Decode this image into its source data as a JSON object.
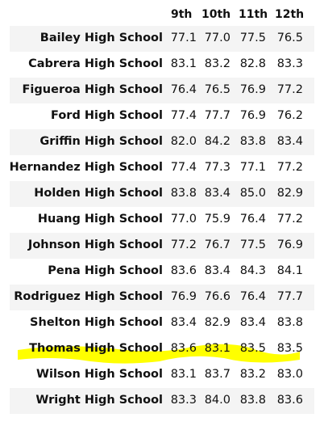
{
  "columns": [
    "9th",
    "10th",
    "11th",
    "12th"
  ],
  "rows": [
    {
      "name": "Bailey High School",
      "values": [
        "77.1",
        "77.0",
        "77.5",
        "76.5"
      ]
    },
    {
      "name": "Cabrera High School",
      "values": [
        "83.1",
        "83.2",
        "82.8",
        "83.3"
      ]
    },
    {
      "name": "Figueroa High School",
      "values": [
        "76.4",
        "76.5",
        "76.9",
        "77.2"
      ]
    },
    {
      "name": "Ford High School",
      "values": [
        "77.4",
        "77.7",
        "76.9",
        "76.2"
      ]
    },
    {
      "name": "Griffin High School",
      "values": [
        "82.0",
        "84.2",
        "83.8",
        "83.4"
      ]
    },
    {
      "name": "Hernandez High School",
      "values": [
        "77.4",
        "77.3",
        "77.1",
        "77.2"
      ]
    },
    {
      "name": "Holden High School",
      "values": [
        "83.8",
        "83.4",
        "85.0",
        "82.9"
      ]
    },
    {
      "name": "Huang High School",
      "values": [
        "77.0",
        "75.9",
        "76.4",
        "77.2"
      ]
    },
    {
      "name": "Johnson High School",
      "values": [
        "77.2",
        "76.7",
        "77.5",
        "76.9"
      ]
    },
    {
      "name": "Pena High School",
      "values": [
        "83.6",
        "83.4",
        "84.3",
        "84.1"
      ]
    },
    {
      "name": "Rodriguez High School",
      "values": [
        "76.9",
        "76.6",
        "76.4",
        "77.7"
      ]
    },
    {
      "name": "Shelton High School",
      "values": [
        "83.4",
        "82.9",
        "83.4",
        "83.8"
      ]
    },
    {
      "name": "Thomas High School",
      "values": [
        "83.6",
        "83.1",
        "83.5",
        "83.5"
      ]
    },
    {
      "name": "Wilson High School",
      "values": [
        "83.1",
        "83.7",
        "83.2",
        "83.0"
      ]
    },
    {
      "name": "Wright High School",
      "values": [
        "83.3",
        "84.0",
        "83.8",
        "83.6"
      ]
    }
  ],
  "highlight": {
    "row_name": "Thomas High School",
    "color": "#ffff00"
  },
  "colors": {
    "stripe": "#f4f4f4",
    "text": "#111111"
  }
}
